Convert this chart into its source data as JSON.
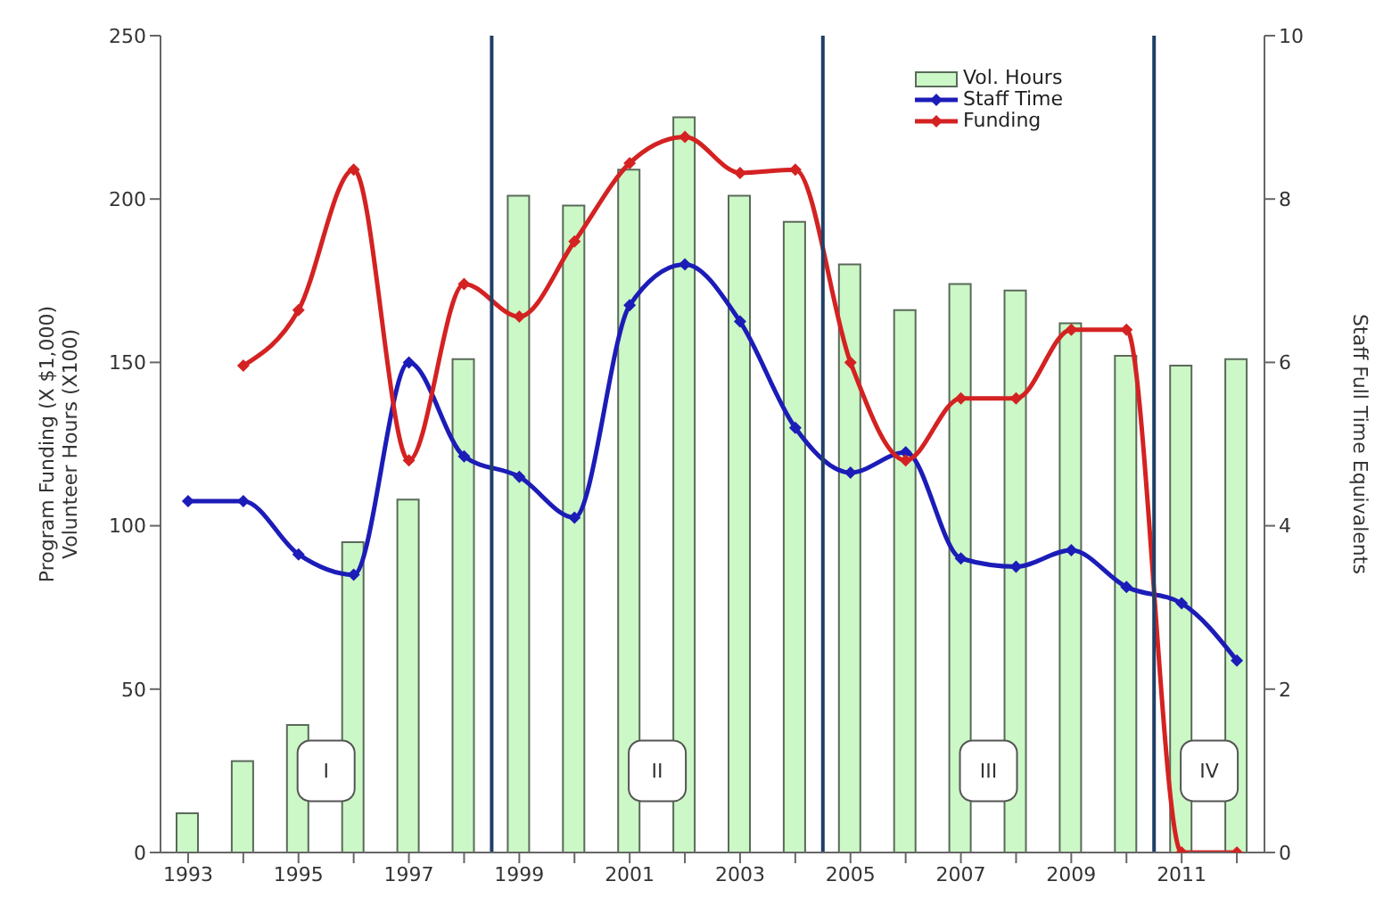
{
  "chart_data": {
    "type": "bar",
    "ylabel": "Program Funding (X $1,000)\nVolunteer Hours (X100)",
    "y2label": "Staff Full Time Equivalents",
    "x": [
      1993,
      1994,
      1995,
      1996,
      1997,
      1998,
      1999,
      2000,
      2001,
      2002,
      2003,
      2004,
      2005,
      2006,
      2007,
      2008,
      2009,
      2010,
      2011,
      2012
    ],
    "xlim": [
      1992.5,
      2012.5
    ],
    "xticks": [
      1993,
      {
        "value": 1994,
        "label": null
      },
      1995,
      {
        "value": 1996,
        "label": null
      },
      1997,
      {
        "value": 1998,
        "label": null
      },
      1999,
      {
        "value": 2000,
        "label": null
      },
      2001,
      {
        "value": 2002,
        "label": null
      },
      2003,
      {
        "value": 2004,
        "label": null
      },
      2005,
      {
        "value": 2006,
        "label": null
      },
      2007,
      {
        "value": 2008,
        "label": null
      },
      2009,
      {
        "value": 2010,
        "label": null
      },
      2011,
      {
        "value": 2012,
        "label": null
      }
    ],
    "ylim": [
      0,
      250
    ],
    "yticks": [
      0,
      50,
      100,
      150,
      200,
      250
    ],
    "y2lim": [
      0,
      10
    ],
    "y2ticks": [
      0,
      2,
      4,
      6,
      8,
      10
    ],
    "series": [
      {
        "name": "Vol. Hours",
        "color": "#ccf7c6",
        "values": [
          12,
          28,
          39,
          95,
          108,
          151,
          201,
          198,
          209,
          225,
          201,
          193,
          180,
          166,
          174,
          172,
          162,
          152,
          149,
          151
        ]
      },
      {
        "name": "Staff Time",
        "type": "line",
        "axis": "y2",
        "color": "#1c1cb8",
        "values": [
          4.3,
          4.3,
          3.65,
          3.4,
          6.0,
          4.85,
          4.6,
          4.1,
          6.7,
          7.2,
          6.5,
          5.2,
          4.65,
          4.9,
          3.6,
          3.5,
          3.7,
          3.25,
          3.05,
          2.35
        ]
      },
      {
        "name": "Funding",
        "type": "line",
        "color": "#d42222",
        "values": [
          null,
          149,
          166,
          209,
          120,
          174,
          164,
          187,
          211,
          219,
          208,
          209,
          150,
          120,
          139,
          139,
          160,
          160,
          0,
          0
        ]
      }
    ],
    "ref_lines": [
      {
        "axis": "x",
        "value": 1998.5,
        "color": "#1f3f66"
      },
      {
        "axis": "x",
        "value": 2004.5,
        "color": "#1f3f66"
      },
      {
        "axis": "x",
        "value": 2010.5,
        "color": "#1f3f66"
      }
    ],
    "annotations": [
      {
        "text": "I",
        "x": 1995.5,
        "y": 25
      },
      {
        "text": "II",
        "x": 2001.5,
        "y": 25
      },
      {
        "text": "III",
        "x": 2007.5,
        "y": 25
      },
      {
        "text": "IV",
        "x": 2011.5,
        "y": 25
      }
    ],
    "marker": "diamond",
    "legend": "top",
    "grid": false
  }
}
